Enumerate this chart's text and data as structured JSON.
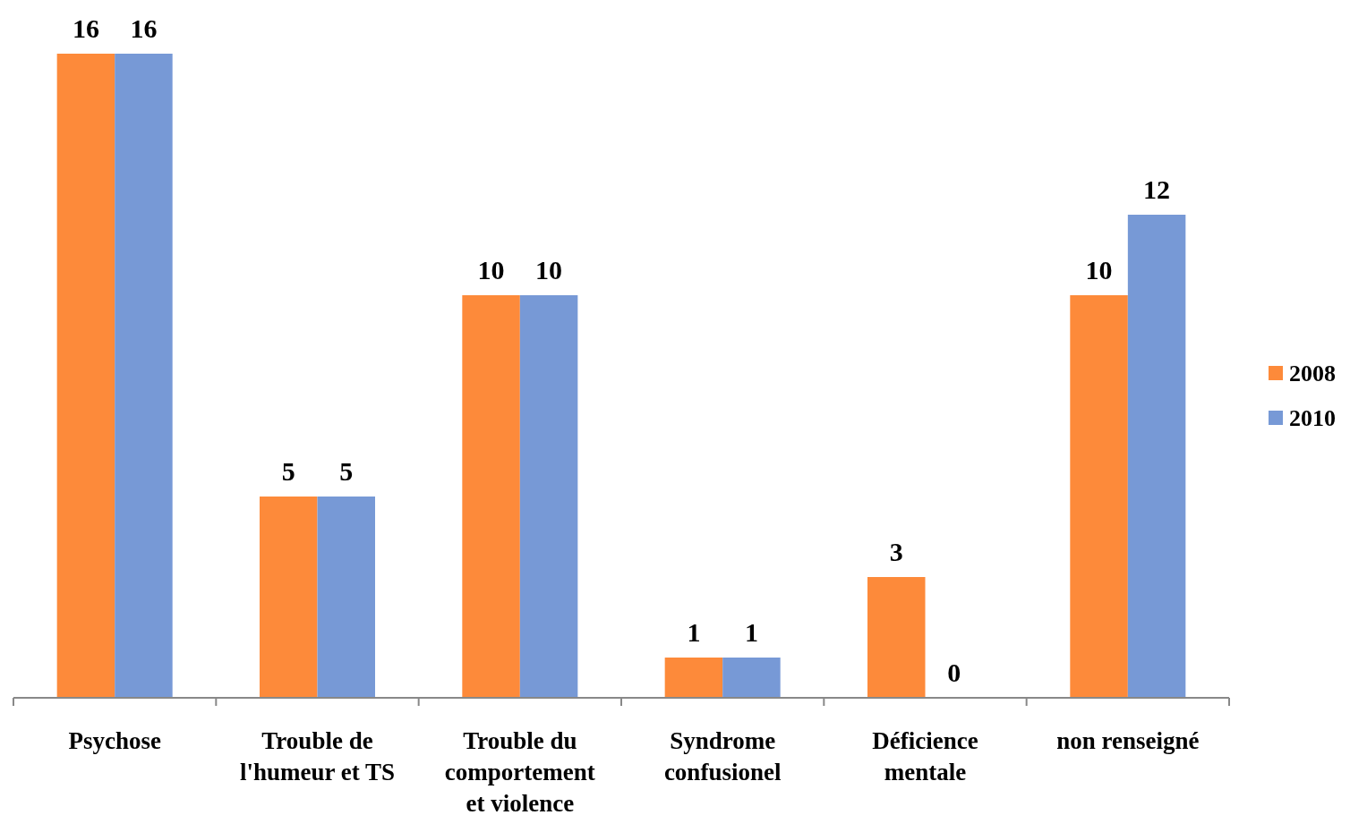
{
  "chart_data": {
    "type": "bar",
    "categories": [
      "Psychose",
      "Trouble de l'humeur et TS",
      "Trouble du comportement et violence",
      "Syndrome confusionel",
      "Déficience mentale",
      "non renseigné"
    ],
    "series": [
      {
        "name": "2008",
        "color": "#fd8a3a",
        "values": [
          16,
          5,
          10,
          1,
          3,
          10
        ]
      },
      {
        "name": "2010",
        "color": "#7799d6",
        "values": [
          16,
          5,
          10,
          1,
          0,
          12
        ]
      }
    ],
    "data_labels": true,
    "legend": "right"
  }
}
